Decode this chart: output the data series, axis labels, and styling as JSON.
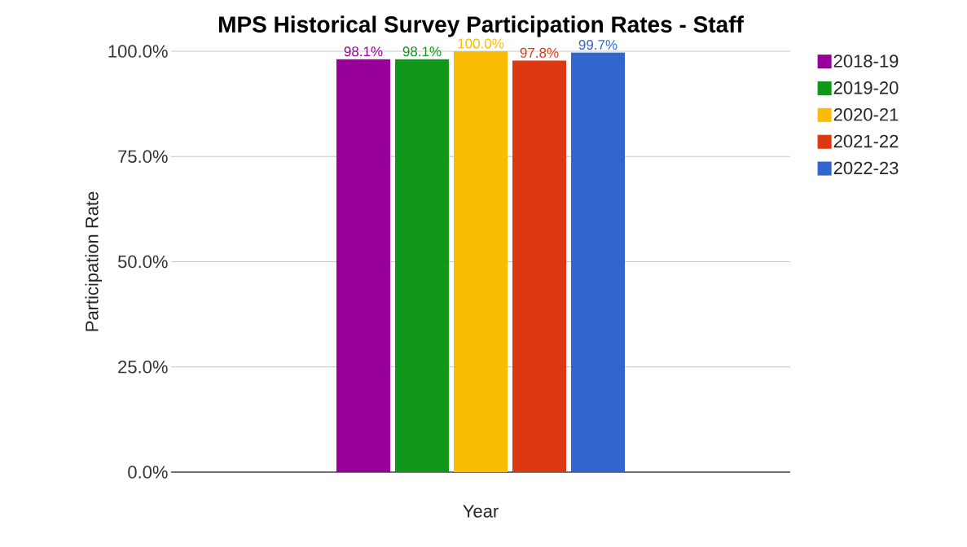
{
  "chart_data": {
    "type": "bar",
    "title": "MPS Historical Survey Participation Rates - Staff",
    "xlabel": "Year",
    "ylabel": "Participation Rate",
    "categories": [
      null
    ],
    "series": [
      {
        "name": "2018-19",
        "color": "#990099",
        "values": [
          98.1
        ],
        "value_labels": [
          "98.1%"
        ]
      },
      {
        "name": "2019-20",
        "color": "#109618",
        "values": [
          98.1
        ],
        "value_labels": [
          "98.1%"
        ]
      },
      {
        "name": "2020-21",
        "color": "#fbbc04",
        "values": [
          100.0
        ],
        "value_labels": [
          "100.0%"
        ]
      },
      {
        "name": "2021-22",
        "color": "#dc3912",
        "values": [
          97.8
        ],
        "value_labels": [
          "97.8%"
        ]
      },
      {
        "name": "2022-23",
        "color": "#3366cc",
        "values": [
          99.7
        ],
        "value_labels": [
          "99.7%"
        ]
      }
    ],
    "ylim": [
      0,
      100
    ],
    "yticks": [
      {
        "value": 0,
        "label": "0.0%"
      },
      {
        "value": 25,
        "label": "25.0%"
      },
      {
        "value": 50,
        "label": "50.0%"
      },
      {
        "value": 75,
        "label": "75.0%"
      },
      {
        "value": 100,
        "label": "100.0%"
      }
    ],
    "grid": "y",
    "legend": "right"
  }
}
